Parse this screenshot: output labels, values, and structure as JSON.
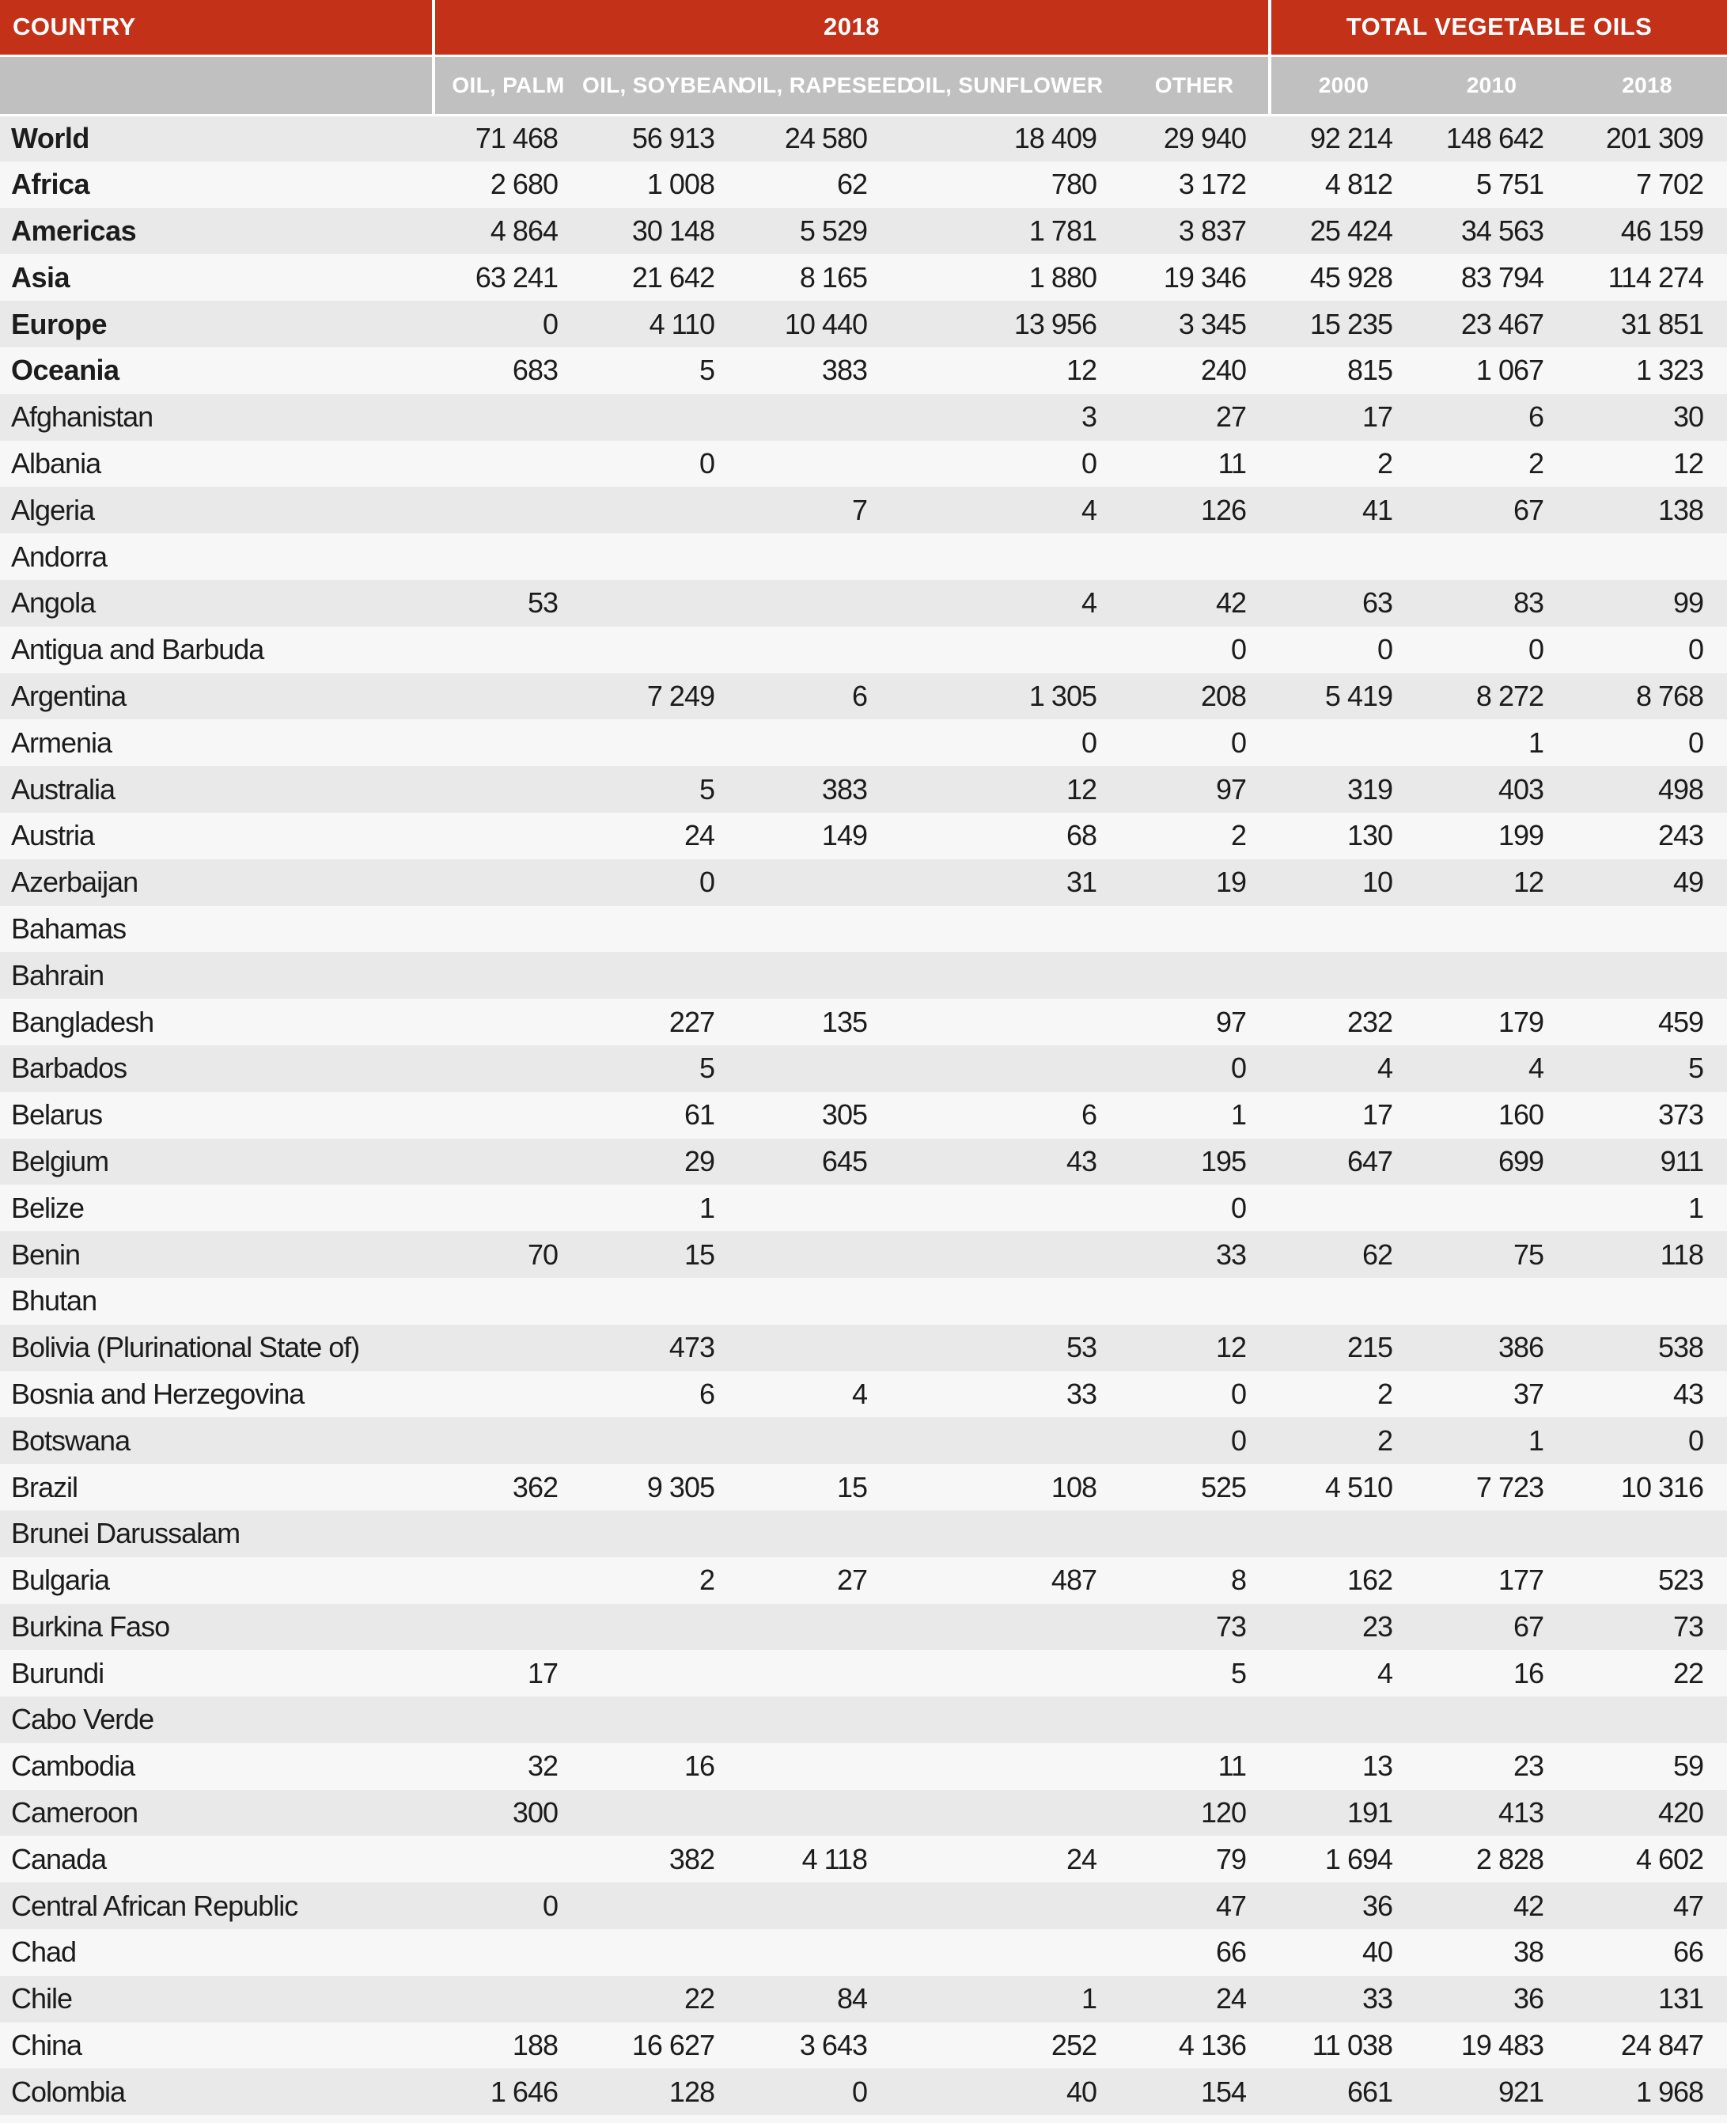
{
  "colors": {
    "header_red": "#c23118",
    "subheader_gray": "#c0c0c0",
    "row_gray": "#e9e9e9",
    "row_light": "#f7f7f7",
    "text_dark": "#1c1c1c",
    "text_white": "#ffffff"
  },
  "table": {
    "header": {
      "country_label": "COUNTRY",
      "group_2018_label": "2018",
      "group_total_label": "TOTAL VEGETABLE OILS",
      "subheaders_2018": [
        "OIL, PALM",
        "OIL, SOYBEAN",
        "OIL, RAPESEED",
        "OIL, SUNFLOWER",
        "OTHER"
      ],
      "subheaders_total": [
        "2000",
        "2010",
        "2018"
      ]
    },
    "rows": [
      {
        "country": "World",
        "bold": true,
        "values": [
          "71 468",
          "56 913",
          "24 580",
          "18 409",
          "29 940",
          "92 214",
          "148 642",
          "201 309"
        ]
      },
      {
        "country": "Africa",
        "bold": true,
        "values": [
          "2 680",
          "1 008",
          "62",
          "780",
          "3 172",
          "4 812",
          "5 751",
          "7 702"
        ]
      },
      {
        "country": "Americas",
        "bold": true,
        "values": [
          "4 864",
          "30 148",
          "5 529",
          "1 781",
          "3 837",
          "25 424",
          "34 563",
          "46 159"
        ]
      },
      {
        "country": "Asia",
        "bold": true,
        "values": [
          "63 241",
          "21 642",
          "8 165",
          "1 880",
          "19 346",
          "45 928",
          "83 794",
          "114 274"
        ]
      },
      {
        "country": "Europe",
        "bold": true,
        "values": [
          "0",
          "4 110",
          "10 440",
          "13 956",
          "3 345",
          "15 235",
          "23 467",
          "31 851"
        ]
      },
      {
        "country": "Oceania",
        "bold": true,
        "values": [
          "683",
          "5",
          "383",
          "12",
          "240",
          "815",
          "1 067",
          "1 323"
        ]
      },
      {
        "country": "Afghanistan",
        "bold": false,
        "values": [
          "",
          "",
          "",
          "3",
          "27",
          "17",
          "6",
          "30"
        ]
      },
      {
        "country": "Albania",
        "bold": false,
        "values": [
          "",
          "0",
          "",
          "0",
          "11",
          "2",
          "2",
          "12"
        ]
      },
      {
        "country": "Algeria",
        "bold": false,
        "values": [
          "",
          "",
          "7",
          "4",
          "126",
          "41",
          "67",
          "138"
        ]
      },
      {
        "country": "Andorra",
        "bold": false,
        "values": [
          "",
          "",
          "",
          "",
          "",
          "",
          "",
          ""
        ]
      },
      {
        "country": "Angola",
        "bold": false,
        "values": [
          "53",
          "",
          "",
          "4",
          "42",
          "63",
          "83",
          "99"
        ]
      },
      {
        "country": "Antigua and Barbuda",
        "bold": false,
        "values": [
          "",
          "",
          "",
          "",
          "0",
          "0",
          "0",
          "0"
        ]
      },
      {
        "country": "Argentina",
        "bold": false,
        "values": [
          "",
          "7 249",
          "6",
          "1 305",
          "208",
          "5 419",
          "8 272",
          "8 768"
        ]
      },
      {
        "country": "Armenia",
        "bold": false,
        "values": [
          "",
          "",
          "",
          "0",
          "0",
          "",
          "1",
          "0"
        ]
      },
      {
        "country": "Australia",
        "bold": false,
        "values": [
          "",
          "5",
          "383",
          "12",
          "97",
          "319",
          "403",
          "498"
        ]
      },
      {
        "country": "Austria",
        "bold": false,
        "values": [
          "",
          "24",
          "149",
          "68",
          "2",
          "130",
          "199",
          "243"
        ]
      },
      {
        "country": "Azerbaijan",
        "bold": false,
        "values": [
          "",
          "0",
          "",
          "31",
          "19",
          "10",
          "12",
          "49"
        ]
      },
      {
        "country": "Bahamas",
        "bold": false,
        "values": [
          "",
          "",
          "",
          "",
          "",
          "",
          "",
          ""
        ]
      },
      {
        "country": "Bahrain",
        "bold": false,
        "values": [
          "",
          "",
          "",
          "",
          "",
          "",
          "",
          ""
        ]
      },
      {
        "country": "Bangladesh",
        "bold": false,
        "values": [
          "",
          "227",
          "135",
          "",
          "97",
          "232",
          "179",
          "459"
        ]
      },
      {
        "country": "Barbados",
        "bold": false,
        "values": [
          "",
          "5",
          "",
          "",
          "0",
          "4",
          "4",
          "5"
        ]
      },
      {
        "country": "Belarus",
        "bold": false,
        "values": [
          "",
          "61",
          "305",
          "6",
          "1",
          "17",
          "160",
          "373"
        ]
      },
      {
        "country": "Belgium",
        "bold": false,
        "values": [
          "",
          "29",
          "645",
          "43",
          "195",
          "647",
          "699",
          "911"
        ]
      },
      {
        "country": "Belize",
        "bold": false,
        "values": [
          "",
          "1",
          "",
          "",
          "0",
          "",
          "",
          "1"
        ]
      },
      {
        "country": "Benin",
        "bold": false,
        "values": [
          "70",
          "15",
          "",
          "",
          "33",
          "62",
          "75",
          "118"
        ]
      },
      {
        "country": "Bhutan",
        "bold": false,
        "values": [
          "",
          "",
          "",
          "",
          "",
          "",
          "",
          ""
        ]
      },
      {
        "country": "Bolivia (Plurinational State of)",
        "bold": false,
        "values": [
          "",
          "473",
          "",
          "53",
          "12",
          "215",
          "386",
          "538"
        ]
      },
      {
        "country": "Bosnia and Herzegovina",
        "bold": false,
        "values": [
          "",
          "6",
          "4",
          "33",
          "0",
          "2",
          "37",
          "43"
        ]
      },
      {
        "country": "Botswana",
        "bold": false,
        "values": [
          "",
          "",
          "",
          "",
          "0",
          "2",
          "1",
          "0"
        ]
      },
      {
        "country": "Brazil",
        "bold": false,
        "values": [
          "362",
          "9 305",
          "15",
          "108",
          "525",
          "4 510",
          "7 723",
          "10 316"
        ]
      },
      {
        "country": "Brunei Darussalam",
        "bold": false,
        "values": [
          "",
          "",
          "",
          "",
          "",
          "",
          "",
          ""
        ]
      },
      {
        "country": "Bulgaria",
        "bold": false,
        "values": [
          "",
          "2",
          "27",
          "487",
          "8",
          "162",
          "177",
          "523"
        ]
      },
      {
        "country": "Burkina Faso",
        "bold": false,
        "values": [
          "",
          "",
          "",
          "",
          "73",
          "23",
          "67",
          "73"
        ]
      },
      {
        "country": "Burundi",
        "bold": false,
        "values": [
          "17",
          "",
          "",
          "",
          "5",
          "4",
          "16",
          "22"
        ]
      },
      {
        "country": "Cabo Verde",
        "bold": false,
        "values": [
          "",
          "",
          "",
          "",
          "",
          "",
          "",
          ""
        ]
      },
      {
        "country": "Cambodia",
        "bold": false,
        "values": [
          "32",
          "16",
          "",
          "",
          "11",
          "13",
          "23",
          "59"
        ]
      },
      {
        "country": "Cameroon",
        "bold": false,
        "values": [
          "300",
          "",
          "",
          "",
          "120",
          "191",
          "413",
          "420"
        ]
      },
      {
        "country": "Canada",
        "bold": false,
        "values": [
          "",
          "382",
          "4 118",
          "24",
          "79",
          "1 694",
          "2 828",
          "4 602"
        ]
      },
      {
        "country": "Central African Republic",
        "bold": false,
        "values": [
          "0",
          "",
          "",
          "",
          "47",
          "36",
          "42",
          "47"
        ]
      },
      {
        "country": "Chad",
        "bold": false,
        "values": [
          "",
          "",
          "",
          "",
          "66",
          "40",
          "38",
          "66"
        ]
      },
      {
        "country": "Chile",
        "bold": false,
        "values": [
          "",
          "22",
          "84",
          "1",
          "24",
          "33",
          "36",
          "131"
        ]
      },
      {
        "country": "China",
        "bold": false,
        "values": [
          "188",
          "16 627",
          "3 643",
          "252",
          "4 136",
          "11 038",
          "19 483",
          "24 847"
        ]
      },
      {
        "country": "Colombia",
        "bold": false,
        "values": [
          "1 646",
          "128",
          "0",
          "40",
          "154",
          "661",
          "921",
          "1 968"
        ]
      }
    ]
  }
}
